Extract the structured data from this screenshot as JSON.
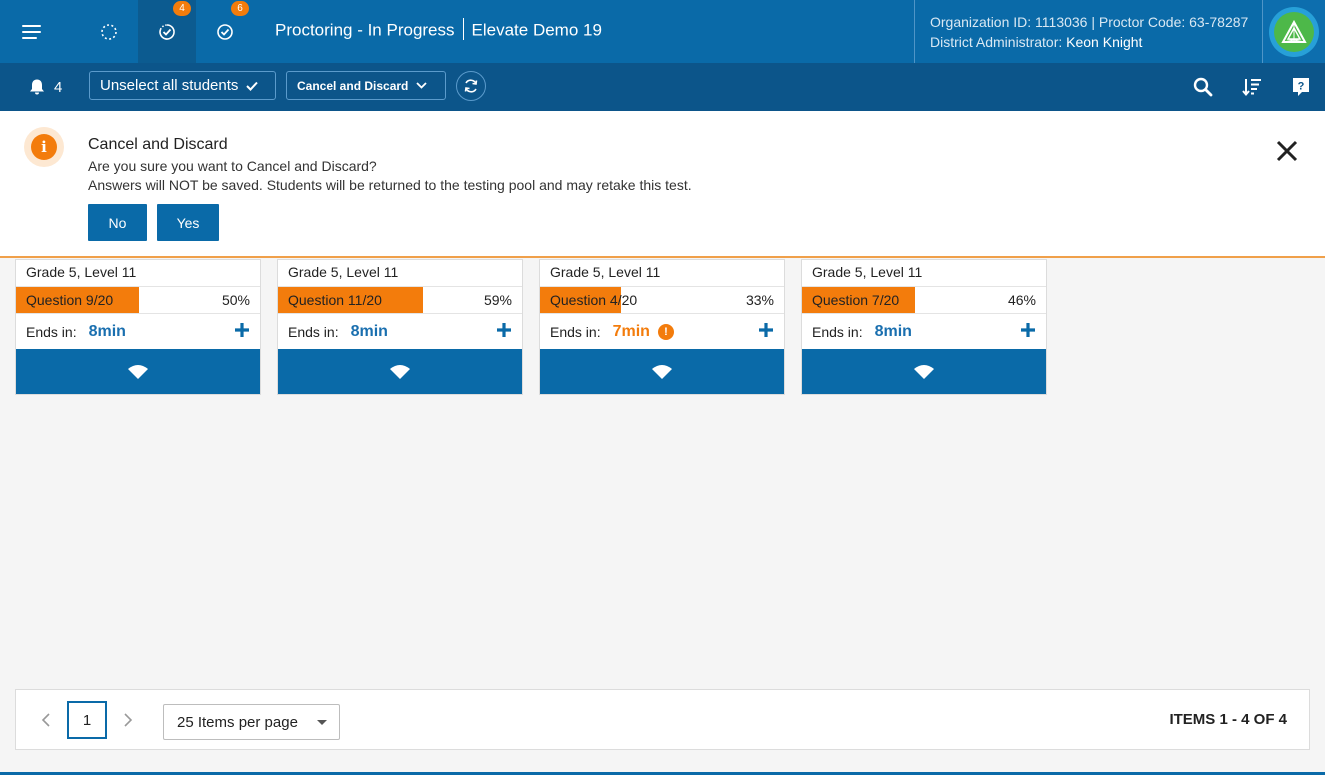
{
  "header": {
    "title_left": "Proctoring - In Progress",
    "title_right": "Elevate Demo 19",
    "tabs": [
      {
        "name": "not-started",
        "badge": ""
      },
      {
        "name": "in-progress",
        "badge": "4"
      },
      {
        "name": "completed",
        "badge": "6"
      }
    ],
    "org_line": "Organization ID: 1113036 | Proctor Code: 63-78287",
    "role_label": "District Administrator: ",
    "user_name": "Keon Knight"
  },
  "toolbar": {
    "notification_count": "4",
    "unselect_label": "Unselect all students",
    "action_label": "Cancel and Discard"
  },
  "banner": {
    "title": "Cancel and Discard",
    "question": "Are you sure you want to Cancel and Discard?",
    "detail": "Answers will NOT be saved. Students will be returned to the testing pool and may retake this test.",
    "no_label": "No",
    "yes_label": "Yes"
  },
  "cards": [
    {
      "grade": "Grade 5, Level 11",
      "question": "Question 9/20",
      "percent": "50%",
      "progress": 0.5,
      "ends_label": "Ends in:",
      "time": "8min",
      "warning": false
    },
    {
      "grade": "Grade 5, Level 11",
      "question": "Question 11/20",
      "percent": "59%",
      "progress": 0.59,
      "ends_label": "Ends in:",
      "time": "8min",
      "warning": false
    },
    {
      "grade": "Grade 5, Level 11",
      "question": "Question 4/20",
      "percent": "33%",
      "progress": 0.33,
      "ends_label": "Ends in:",
      "time": "7min",
      "warning": true
    },
    {
      "grade": "Grade 5, Level 11",
      "question": "Question 7/20",
      "percent": "46%",
      "progress": 0.46,
      "ends_label": "Ends in:",
      "time": "8min",
      "warning": false
    }
  ],
  "pagination": {
    "current_page": "1",
    "per_page_label": "25 Items per page",
    "items_label": "ITEMS 1 - 4 OF 4"
  },
  "colors": {
    "primary": "#0a6aa8",
    "toolbar": "#0c558a",
    "accent_orange": "#f37c0c"
  }
}
